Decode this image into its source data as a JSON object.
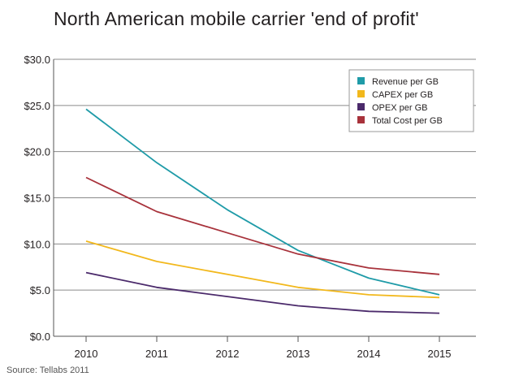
{
  "title": "North American mobile carrier 'end of profit'",
  "source": "Source: Tellabs 2011",
  "chart_data": {
    "type": "line",
    "title": "North American mobile carrier 'end of profit'",
    "xlabel": "",
    "ylabel": "",
    "x": [
      "2010",
      "2011",
      "2012",
      "2013",
      "2014",
      "2015"
    ],
    "ylim": [
      0,
      30
    ],
    "yticks": [
      0,
      5,
      10,
      15,
      20,
      25,
      30
    ],
    "ytick_labels": [
      "$0.0",
      "$5.0",
      "$10.0",
      "$15.0",
      "$20.0",
      "$25.0",
      "$30.0"
    ],
    "grid": true,
    "legend_position": "top-right",
    "series": [
      {
        "name": "Revenue per GB",
        "color": "#1f9ba8",
        "values": [
          24.6,
          18.8,
          13.7,
          9.3,
          6.3,
          4.5
        ]
      },
      {
        "name": "CAPEX per GB",
        "color": "#f2b81c",
        "values": [
          10.3,
          8.1,
          6.7,
          5.3,
          4.5,
          4.2
        ]
      },
      {
        "name": "OPEX per GB",
        "color": "#4b2a6b",
        "values": [
          6.9,
          5.3,
          4.3,
          3.3,
          2.7,
          2.5
        ]
      },
      {
        "name": "Total Cost per GB",
        "color": "#a8323b",
        "values": [
          17.2,
          13.5,
          11.2,
          8.9,
          7.4,
          6.7
        ]
      }
    ]
  }
}
